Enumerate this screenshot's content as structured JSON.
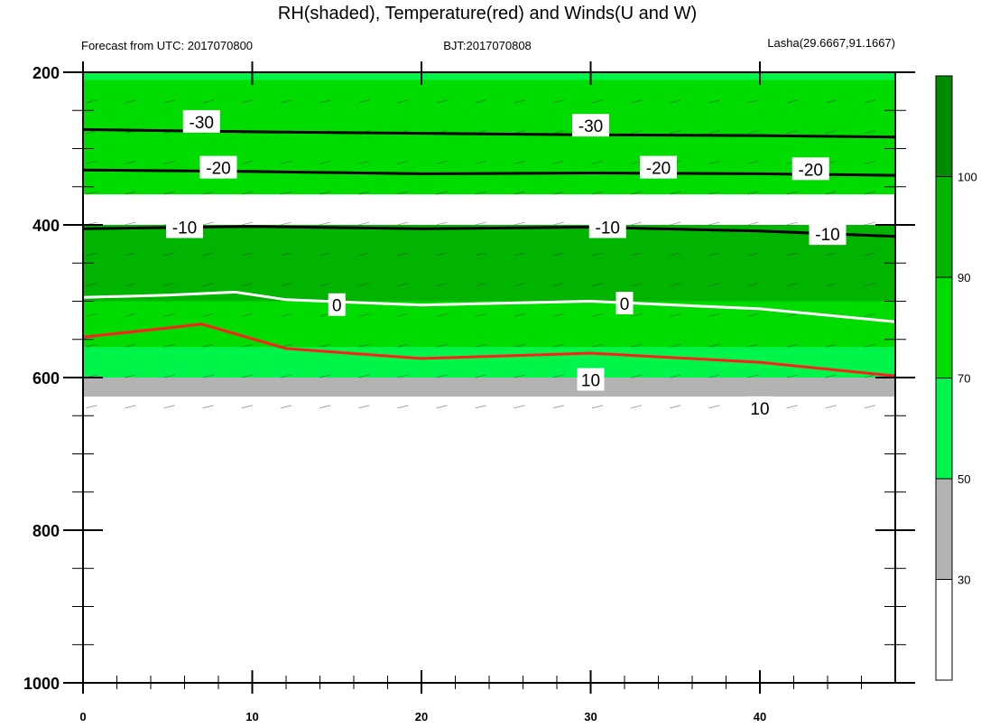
{
  "chart_data": {
    "type": "contour",
    "title": "RH(shaded), Temperature(red) and Winds(U and W)",
    "subtitle_left": "Forecast from UTC: 2017070800",
    "subtitle_center": "BJT:2017070808",
    "subtitle_right": "Lasha(29.6667,91.1667)",
    "xlim": [
      0,
      48
    ],
    "ylim": [
      200,
      1000
    ],
    "x_ticks": [
      0,
      10,
      20,
      30,
      40
    ],
    "y_ticks": [
      200,
      400,
      600,
      800,
      1000
    ],
    "colorbar": {
      "ticks": [
        "30",
        "50",
        "70",
        "90",
        "100"
      ],
      "colors": [
        "#ffffff",
        "#b3b3b3",
        "#00f54a",
        "#00dc00",
        "#00b400",
        "#008c00"
      ]
    },
    "rh_bands": [
      {
        "p_top": 200,
        "p_bot": 210,
        "color": "#00f54a"
      },
      {
        "p_top": 210,
        "p_bot": 360,
        "color": "#00dc00"
      },
      {
        "p_top": 400,
        "p_bot": 500,
        "color": "#00b400"
      },
      {
        "p_top": 500,
        "p_bot": 600,
        "color": "#00dc00"
      },
      {
        "p_top": 560,
        "p_bot": 600,
        "color": "#00f54a"
      },
      {
        "p_top": 600,
        "p_bot": 625,
        "color": "#b3b3b3"
      }
    ],
    "temperature_isotherms": [
      {
        "value": -30,
        "color": "#000000",
        "x": [
          0,
          10,
          20,
          30,
          40,
          48
        ],
        "p": [
          275,
          278,
          280,
          282,
          283,
          285
        ]
      },
      {
        "value": -20,
        "color": "#000000",
        "x": [
          0,
          10,
          20,
          30,
          40,
          48
        ],
        "p": [
          328,
          330,
          333,
          332,
          333,
          335
        ]
      },
      {
        "value": -10,
        "color": "#000000",
        "x": [
          0,
          10,
          20,
          30,
          40,
          48
        ],
        "p": [
          405,
          402,
          405,
          403,
          408,
          415
        ]
      },
      {
        "value": 0,
        "color": "#ffffff",
        "x": [
          0,
          5,
          9,
          12,
          20,
          30,
          40,
          48
        ],
        "p": [
          495,
          492,
          488,
          498,
          505,
          500,
          510,
          527
        ]
      },
      {
        "value": 10,
        "color": "#ff1e1e",
        "x": [
          0,
          5,
          7,
          12,
          20,
          30,
          40,
          48
        ],
        "p": [
          547,
          535,
          530,
          562,
          575,
          568,
          580,
          598
        ]
      }
    ],
    "isotherm_labels": [
      {
        "text": "-30",
        "x": 7,
        "p": 265
      },
      {
        "text": "-30",
        "x": 30,
        "p": 270
      },
      {
        "text": "-20",
        "x": 8,
        "p": 325
      },
      {
        "text": "-20",
        "x": 34,
        "p": 325
      },
      {
        "text": "-20",
        "x": 43,
        "p": 327
      },
      {
        "text": "-10",
        "x": 6,
        "p": 403
      },
      {
        "text": "-10",
        "x": 31,
        "p": 403
      },
      {
        "text": "-10",
        "x": 44,
        "p": 412
      },
      {
        "text": "0",
        "x": 15,
        "p": 505
      },
      {
        "text": "0",
        "x": 32,
        "p": 503
      },
      {
        "text": "10",
        "x": 30,
        "p": 603
      },
      {
        "text": "10",
        "x": 40,
        "p": 640
      }
    ]
  }
}
